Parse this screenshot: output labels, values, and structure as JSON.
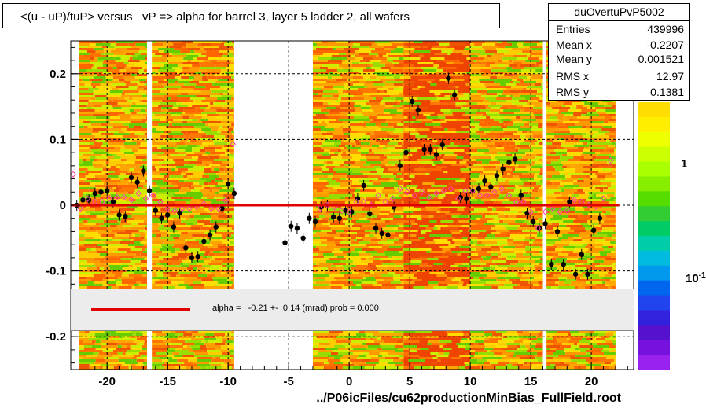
{
  "title": "<(u - uP)/tuP> versus   vP => alpha for barrel 3, layer 5 ladder 2, all wafers",
  "stats": {
    "name": "duOvertuPvP5002",
    "rows": [
      {
        "key": "Entries",
        "value": "439996"
      },
      {
        "key": "Mean x",
        "value": "-0.2207"
      },
      {
        "key": "Mean y",
        "value": "0.001521"
      },
      {
        "key": "RMS x",
        "value": "12.97"
      },
      {
        "key": "RMS y",
        "value": "0.1381"
      }
    ]
  },
  "fit": {
    "text": "alpha =   -0.21 +-  0.14 (mrad) prob = 0.000",
    "color": "#e00000"
  },
  "footer": "../P06icFiles/cu62productionMinBias_FullField.root",
  "colorbar": {
    "labels": [
      "1",
      "10"
    ],
    "label_suffix": "-1"
  },
  "chart_data": {
    "type": "scatter",
    "title": "<(u - uP)/tuP> versus   vP => alpha for barrel 3, layer 5 ladder 2, all wafers",
    "xlabel": "",
    "ylabel": "",
    "xlim": [
      -23,
      23.5
    ],
    "ylim": [
      -0.25,
      0.25
    ],
    "x_ticks": [
      "-20",
      "-15",
      "-10",
      "-5",
      "0",
      "5",
      "10",
      "15",
      "20"
    ],
    "y_ticks": [
      "0.2",
      "0.1",
      "0",
      "-0.1",
      "-0.2"
    ],
    "x_tick_values": [
      -20,
      -15,
      -10,
      -5,
      0,
      5,
      10,
      15,
      20
    ],
    "y_tick_values": [
      0.2,
      0.1,
      0,
      -0.1,
      -0.2
    ],
    "grid": "dashed",
    "heatmap_bands_x": [
      [
        -22.3,
        -16.7
      ],
      [
        -16.3,
        -9.5
      ],
      [
        -3.0,
        4.5
      ],
      [
        4.5,
        10.0
      ],
      [
        10.0,
        16.0
      ],
      [
        16.3,
        22.0
      ]
    ],
    "series": [
      {
        "marker": "filled-circle",
        "color": "#000000",
        "points": [
          [
            -22.5,
            0.0
          ],
          [
            -22.0,
            0.008
          ],
          [
            -21.5,
            0.008
          ],
          [
            -21.0,
            0.018
          ],
          [
            -20.5,
            0.02
          ],
          [
            -20.0,
            0.022
          ],
          [
            -19.5,
            0.005
          ],
          [
            -19.0,
            -0.015
          ],
          [
            -18.5,
            -0.017
          ],
          [
            -18.0,
            0.042
          ],
          [
            -17.5,
            0.035
          ],
          [
            -17.0,
            0.052
          ],
          [
            -16.5,
            0.022
          ],
          [
            -16.0,
            -0.008
          ],
          [
            -15.5,
            -0.02
          ],
          [
            -15.0,
            -0.015
          ],
          [
            -14.5,
            -0.033
          ],
          [
            -14.0,
            -0.012
          ],
          [
            -13.5,
            -0.065
          ],
          [
            -13.0,
            -0.08
          ],
          [
            -12.5,
            -0.078
          ],
          [
            -12.0,
            -0.055
          ],
          [
            -11.5,
            -0.045
          ],
          [
            -11.0,
            -0.033
          ],
          [
            -10.5,
            -0.005
          ],
          [
            -10.0,
            0.032
          ],
          [
            -9.5,
            0.018
          ],
          [
            -5.3,
            -0.057
          ],
          [
            -4.8,
            -0.032
          ],
          [
            -4.3,
            -0.035
          ],
          [
            -3.8,
            -0.05
          ],
          [
            -3.3,
            -0.02
          ],
          [
            -2.8,
            -0.025
          ],
          [
            -2.3,
            -0.003
          ],
          [
            -1.8,
            0.0
          ],
          [
            -1.3,
            -0.018
          ],
          [
            -0.8,
            -0.02
          ],
          [
            -0.3,
            -0.008
          ],
          [
            0.2,
            -0.01
          ],
          [
            0.7,
            0.01
          ],
          [
            1.2,
            0.03
          ],
          [
            1.7,
            -0.013
          ],
          [
            2.2,
            -0.035
          ],
          [
            2.7,
            -0.043
          ],
          [
            3.2,
            -0.045
          ],
          [
            3.7,
            -0.003
          ],
          [
            4.2,
            0.06
          ],
          [
            4.7,
            0.08
          ],
          [
            5.2,
            0.158
          ],
          [
            5.7,
            0.145
          ],
          [
            6.2,
            0.085
          ],
          [
            6.7,
            0.085
          ],
          [
            7.2,
            0.077
          ],
          [
            7.7,
            0.092
          ],
          [
            8.2,
            0.193
          ],
          [
            8.7,
            0.168
          ],
          [
            9.2,
            0.012
          ],
          [
            9.7,
            0.01
          ],
          [
            10.2,
            0.022
          ],
          [
            10.7,
            0.025
          ],
          [
            11.2,
            0.037
          ],
          [
            11.7,
            0.028
          ],
          [
            12.2,
            0.045
          ],
          [
            12.7,
            0.055
          ],
          [
            13.2,
            0.065
          ],
          [
            13.7,
            0.07
          ],
          [
            14.2,
            0.015
          ],
          [
            14.7,
            -0.012
          ],
          [
            15.2,
            -0.025
          ],
          [
            15.7,
            -0.035
          ],
          [
            16.2,
            -0.028
          ],
          [
            16.7,
            -0.09
          ],
          [
            17.2,
            -0.04
          ],
          [
            17.7,
            -0.09
          ],
          [
            18.2,
            0.005
          ],
          [
            18.7,
            -0.105
          ],
          [
            19.2,
            -0.075
          ],
          [
            19.7,
            -0.105
          ],
          [
            20.2,
            -0.038
          ],
          [
            20.7,
            -0.02
          ]
        ]
      },
      {
        "marker": "open-diamond",
        "color": "#ff44aa",
        "points": [
          [
            -22.8,
            0.047
          ],
          [
            -22.2,
            -0.005
          ],
          [
            -21.6,
            0.01
          ],
          [
            -21.0,
            0.005
          ],
          [
            -20.4,
            0.005
          ],
          [
            -19.8,
            0.01
          ],
          [
            -19.2,
            0.012
          ],
          [
            -18.6,
            0.012
          ],
          [
            -18.0,
            0.008
          ],
          [
            -17.4,
            0.018
          ],
          [
            -16.8,
            0.01
          ],
          [
            -16.2,
            0.015
          ],
          [
            -15.6,
            0.005
          ],
          [
            -15.0,
            -0.005
          ],
          [
            -14.4,
            -0.008
          ],
          [
            -13.8,
            -0.005
          ],
          [
            -13.2,
            -0.005
          ],
          [
            -12.6,
            -0.002
          ],
          [
            -12.0,
            0.002
          ],
          [
            -11.4,
            -0.005
          ],
          [
            -10.8,
            -0.005
          ],
          [
            -10.2,
            0.007
          ],
          [
            -9.6,
            0.093
          ],
          [
            -2.4,
            -0.005
          ],
          [
            -1.8,
            0.0
          ],
          [
            -1.2,
            -0.003
          ],
          [
            -0.6,
            -0.008
          ],
          [
            0.0,
            -0.01
          ],
          [
            0.6,
            0.005
          ],
          [
            1.2,
            0.005
          ],
          [
            1.8,
            0.0
          ],
          [
            2.4,
            0.015
          ],
          [
            3.0,
            0.005
          ],
          [
            3.6,
            0.01
          ],
          [
            4.2,
            0.025
          ],
          [
            4.8,
            0.02
          ],
          [
            5.4,
            0.015
          ],
          [
            6.0,
            0.02
          ],
          [
            6.6,
            0.012
          ],
          [
            7.2,
            0.018
          ],
          [
            7.8,
            0.022
          ],
          [
            8.4,
            0.025
          ],
          [
            9.0,
            0.01
          ],
          [
            9.6,
            0.022
          ],
          [
            10.2,
            0.022
          ],
          [
            10.8,
            0.015
          ],
          [
            11.4,
            0.015
          ],
          [
            12.0,
            0.02
          ],
          [
            12.6,
            0.025
          ],
          [
            13.2,
            0.015
          ],
          [
            13.8,
            0.005
          ],
          [
            14.4,
            0.005
          ],
          [
            15.0,
            -0.01
          ],
          [
            15.6,
            -0.035
          ],
          [
            16.2,
            -0.01
          ],
          [
            16.8,
            -0.005
          ],
          [
            17.4,
            -0.01
          ],
          [
            18.0,
            -0.008
          ],
          [
            18.6,
            0.008
          ],
          [
            19.2,
            0.005
          ],
          [
            19.8,
            0.0
          ],
          [
            20.4,
            -0.002
          ],
          [
            21.0,
            0.01
          ],
          [
            21.6,
            0.068
          ]
        ]
      },
      {
        "marker": "fit-line",
        "color": "#e00000",
        "points": [
          [
            -23.0,
            0.0
          ],
          [
            22.3,
            0.0
          ]
        ]
      }
    ]
  }
}
